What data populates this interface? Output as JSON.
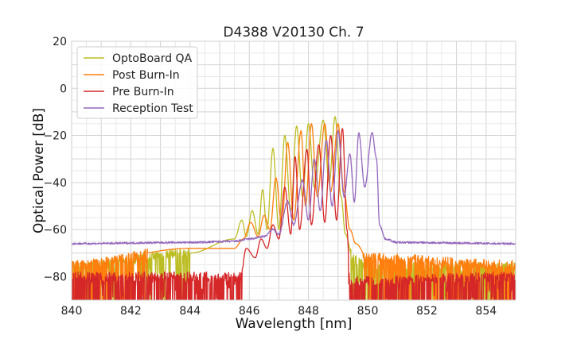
{
  "chart_data": {
    "type": "line",
    "title": "D4388 V20130 Ch. 7",
    "xlabel": "Wavelength [nm]",
    "ylabel": "Optical Power [dB]",
    "xlim": [
      840,
      855
    ],
    "ylim": [
      -90,
      20
    ],
    "xticks": [
      840,
      842,
      844,
      846,
      848,
      850,
      852,
      854
    ],
    "yticks": [
      20,
      0,
      -20,
      -40,
      -60,
      -80
    ],
    "ytick_labels": [
      "20",
      "0",
      "−20",
      "−40",
      "−60",
      "−80"
    ],
    "grid": true,
    "legend_position": "top-left",
    "series": [
      {
        "name": "OptoBoard QA",
        "color": "#bcbd22",
        "noise_floor": -76,
        "points": [
          [
            840,
            -76
          ],
          [
            844,
            -70
          ],
          [
            845.5,
            -64
          ],
          [
            845.75,
            -56
          ],
          [
            845.9,
            -63
          ],
          [
            846.1,
            -52
          ],
          [
            846.3,
            -62
          ],
          [
            846.45,
            -43
          ],
          [
            846.6,
            -60
          ],
          [
            846.8,
            -25.5
          ],
          [
            847.0,
            -60
          ],
          [
            847.2,
            -20
          ],
          [
            847.4,
            -52
          ],
          [
            847.6,
            -16
          ],
          [
            847.8,
            -46
          ],
          [
            848.0,
            -15
          ],
          [
            848.2,
            -42
          ],
          [
            848.5,
            -13.5
          ],
          [
            848.7,
            -40
          ],
          [
            848.9,
            -12
          ],
          [
            849.1,
            -46
          ],
          [
            849.25,
            -62
          ],
          [
            849.5,
            -72
          ],
          [
            850,
            -76
          ],
          [
            855,
            -76
          ]
        ]
      },
      {
        "name": "Post Burn-In",
        "color": "#ff7f0e",
        "noise_floor": -76,
        "points": [
          [
            840,
            -75
          ],
          [
            844,
            -68
          ],
          [
            845.5,
            -68
          ],
          [
            845.8,
            -64
          ],
          [
            846.05,
            -57
          ],
          [
            846.3,
            -63
          ],
          [
            846.5,
            -54
          ],
          [
            846.7,
            -60
          ],
          [
            846.9,
            -38
          ],
          [
            847.1,
            -58
          ],
          [
            847.3,
            -23
          ],
          [
            847.5,
            -56
          ],
          [
            847.75,
            -18
          ],
          [
            847.9,
            -50
          ],
          [
            848.1,
            -15
          ],
          [
            848.3,
            -46
          ],
          [
            848.55,
            -15
          ],
          [
            848.75,
            -44
          ],
          [
            849.0,
            -15
          ],
          [
            849.2,
            -44
          ],
          [
            849.4,
            -60
          ],
          [
            849.6,
            -66
          ],
          [
            850,
            -72
          ],
          [
            855,
            -75
          ]
        ]
      },
      {
        "name": "Pre Burn-In",
        "color": "#d62728",
        "noise_floor": -80,
        "points": [
          [
            840,
            -80
          ],
          [
            845.7,
            -80
          ],
          [
            845.9,
            -68
          ],
          [
            846.2,
            -72
          ],
          [
            846.4,
            -64
          ],
          [
            846.6,
            -68
          ],
          [
            846.8,
            -58
          ],
          [
            847.0,
            -64
          ],
          [
            847.2,
            -42
          ],
          [
            847.4,
            -62
          ],
          [
            847.55,
            -29
          ],
          [
            847.7,
            -60
          ],
          [
            847.95,
            -26
          ],
          [
            848.1,
            -58
          ],
          [
            848.35,
            -24
          ],
          [
            848.55,
            -57
          ],
          [
            848.75,
            -20
          ],
          [
            848.95,
            -56
          ],
          [
            849.15,
            -17
          ],
          [
            849.3,
            -60
          ],
          [
            849.4,
            -82
          ],
          [
            855,
            -80
          ]
        ]
      },
      {
        "name": "Reception Test",
        "color": "#9467bd",
        "points": [
          [
            840,
            -66
          ],
          [
            844,
            -65.5
          ],
          [
            845.5,
            -65
          ],
          [
            846.0,
            -64
          ],
          [
            846.5,
            -63
          ],
          [
            846.8,
            -60
          ],
          [
            847.0,
            -62
          ],
          [
            847.3,
            -48
          ],
          [
            847.5,
            -58
          ],
          [
            847.8,
            -39
          ],
          [
            848.0,
            -56
          ],
          [
            848.2,
            -30
          ],
          [
            848.4,
            -52
          ],
          [
            848.6,
            -22
          ],
          [
            848.8,
            -50
          ],
          [
            849.0,
            -18
          ],
          [
            849.2,
            -46
          ],
          [
            849.4,
            -28
          ],
          [
            849.55,
            -48
          ],
          [
            849.7,
            -19
          ],
          [
            849.9,
            -42
          ],
          [
            850.15,
            -19
          ],
          [
            850.3,
            -30
          ],
          [
            850.4,
            -58
          ],
          [
            850.6,
            -64
          ],
          [
            851,
            -65.5
          ],
          [
            855,
            -66
          ]
        ]
      }
    ]
  }
}
